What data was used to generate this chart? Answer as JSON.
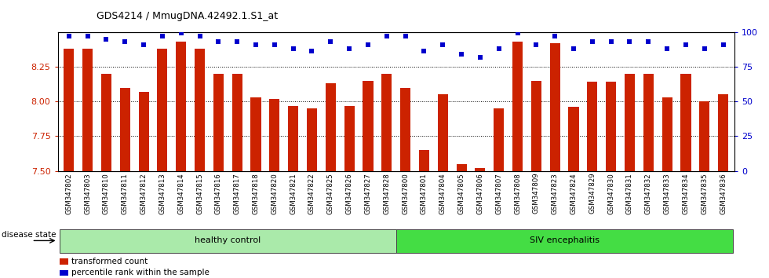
{
  "title": "GDS4214 / MmugDNA.42492.1.S1_at",
  "samples": [
    "GSM347802",
    "GSM347803",
    "GSM347810",
    "GSM347811",
    "GSM347812",
    "GSM347813",
    "GSM347814",
    "GSM347815",
    "GSM347816",
    "GSM347817",
    "GSM347818",
    "GSM347820",
    "GSM347821",
    "GSM347822",
    "GSM347825",
    "GSM347826",
    "GSM347827",
    "GSM347828",
    "GSM347800",
    "GSM347801",
    "GSM347804",
    "GSM347805",
    "GSM347806",
    "GSM347807",
    "GSM347808",
    "GSM347809",
    "GSM347823",
    "GSM347824",
    "GSM347829",
    "GSM347830",
    "GSM347831",
    "GSM347832",
    "GSM347833",
    "GSM347834",
    "GSM347835",
    "GSM347836"
  ],
  "bar_values": [
    8.38,
    8.38,
    8.2,
    8.1,
    8.07,
    8.38,
    8.43,
    8.38,
    8.2,
    8.2,
    8.03,
    8.02,
    7.97,
    7.95,
    8.13,
    7.97,
    8.15,
    8.2,
    8.1,
    7.65,
    8.05,
    7.55,
    7.52,
    7.95,
    8.43,
    8.15,
    8.42,
    7.96,
    8.14,
    8.14,
    8.2,
    8.2,
    8.03,
    8.2,
    8.0,
    8.05
  ],
  "percentile_values": [
    97,
    97,
    95,
    93,
    91,
    97,
    99,
    97,
    93,
    93,
    91,
    91,
    88,
    86,
    93,
    88,
    91,
    97,
    97,
    86,
    91,
    84,
    82,
    88,
    99,
    91,
    97,
    88,
    93,
    93,
    93,
    93,
    88,
    91,
    88,
    91
  ],
  "group_labels": [
    "healthy control",
    "SIV encephalitis"
  ],
  "group_split": 18,
  "ylim_left": [
    7.5,
    8.5
  ],
  "ylim_right": [
    0,
    100
  ],
  "yticks_left": [
    7.5,
    7.75,
    8.0,
    8.25
  ],
  "ytick_top": 8.5,
  "yticks_right": [
    0,
    25,
    50,
    75,
    100
  ],
  "bar_color": "#CC2200",
  "dot_color": "#0000CC",
  "ylabel_color_left": "#CC2200",
  "ylabel_color_right": "#0000CC",
  "disease_state_label": "disease state",
  "legend_items": [
    {
      "label": "transformed count",
      "color": "#CC2200"
    },
    {
      "label": "percentile rank within the sample",
      "color": "#0000CC"
    }
  ],
  "hc_color": "#AAEAAA",
  "siv_color": "#44DD44",
  "xtick_bg_color": "#CCCCCC"
}
